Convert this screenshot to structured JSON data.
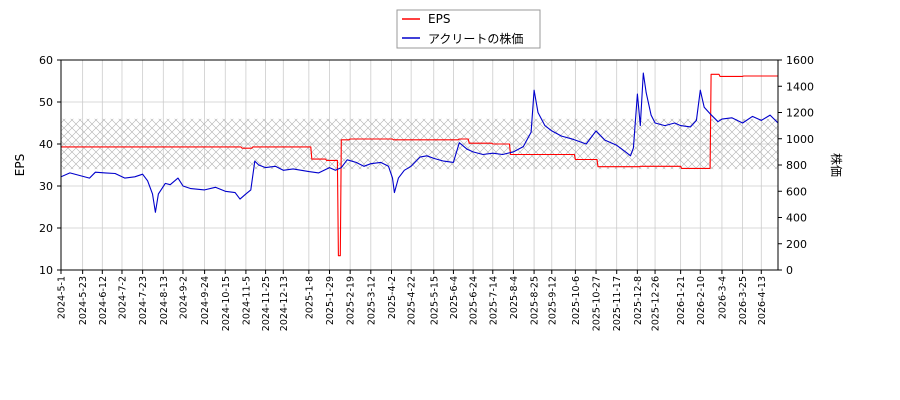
{
  "chart_data": {
    "type": "line",
    "xlabel": "",
    "ylabel_left": "EPS",
    "ylabel_right": "株価",
    "ylim_left": [
      10,
      60
    ],
    "yticks_left": [
      10,
      20,
      30,
      40,
      50,
      60
    ],
    "ylim_right": [
      0,
      1600
    ],
    "yticks_right": [
      0,
      200,
      400,
      600,
      800,
      1000,
      1200,
      1400,
      1600
    ],
    "grid": true,
    "legend_position": "top-center",
    "hatched_band_left": [
      34,
      46
    ],
    "x_tick_labels": [
      "2024-5-1",
      "2024-5-23",
      "2024-6-12",
      "2024-7-2",
      "2024-7-23",
      "2024-8-13",
      "2024-9-2",
      "2024-9-24",
      "2024-10-15",
      "2024-11-5",
      "2024-11-25",
      "2024-12-13",
      "2025-1-8",
      "2025-1-29",
      "2025-2-19",
      "2025-3-12",
      "2025-4-2",
      "2025-4-22",
      "2025-5-15",
      "2025-6-4",
      "2025-6-24",
      "2025-7-14",
      "2025-8-4",
      "2025-8-25",
      "2025-9-12",
      "2025-10-6",
      "2025-10-27",
      "2025-11-17",
      "2025-12-8",
      "2025-12-26",
      "2026-1-21",
      "2026-2-10",
      "2026-3-4",
      "2026-3-25",
      "2026-4-13"
    ],
    "x_range": [
      "2024-5-1",
      "2026-4-30"
    ],
    "series": [
      {
        "name": "EPS",
        "axis": "left",
        "color": "#ff0000",
        "points": [
          [
            "2024-5-1",
            39.3
          ],
          [
            "2024-10-31",
            39.3
          ],
          [
            "2024-11-1",
            39.0
          ],
          [
            "2024-11-11",
            39.0
          ],
          [
            "2024-11-12",
            39.3
          ],
          [
            "2025-1-10",
            39.3
          ],
          [
            "2025-1-11",
            36.4
          ],
          [
            "2025-1-25",
            36.4
          ],
          [
            "2025-1-26",
            36.1
          ],
          [
            "2025-2-6",
            36.1
          ],
          [
            "2025-2-7",
            13.4
          ],
          [
            "2025-2-9",
            13.4
          ],
          [
            "2025-2-10",
            41.0
          ],
          [
            "2025-2-18",
            41.0
          ],
          [
            "2025-2-19",
            41.2
          ],
          [
            "2025-4-3",
            41.2
          ],
          [
            "2025-4-4",
            41.0
          ],
          [
            "2025-6-9",
            41.0
          ],
          [
            "2025-6-10",
            41.2
          ],
          [
            "2025-6-19",
            41.2
          ],
          [
            "2025-6-20",
            40.2
          ],
          [
            "2025-7-13",
            40.2
          ],
          [
            "2025-7-14",
            40.0
          ],
          [
            "2025-7-31",
            40.0
          ],
          [
            "2025-8-1",
            37.5
          ],
          [
            "2025-10-5",
            37.5
          ],
          [
            "2025-10-6",
            36.3
          ],
          [
            "2025-10-28",
            36.3
          ],
          [
            "2025-10-29",
            34.6
          ],
          [
            "2025-12-10",
            34.6
          ],
          [
            "2025-12-11",
            34.7
          ],
          [
            "2025-12-31",
            34.7
          ],
          [
            "2026-1-1",
            34.7
          ],
          [
            "2026-1-21",
            34.7
          ],
          [
            "2026-1-22",
            34.2
          ],
          [
            "2026-2-20",
            34.2
          ],
          [
            "2026-2-21",
            56.6
          ],
          [
            "2026-3-1",
            56.6
          ],
          [
            "2026-3-2",
            56.1
          ],
          [
            "2026-3-25",
            56.1
          ],
          [
            "2026-3-26",
            56.2
          ],
          [
            "2026-4-30",
            56.2
          ]
        ]
      },
      {
        "name": "アクリートの株価",
        "axis": "right",
        "color": "#0000cc",
        "points": [
          [
            "2024-5-1",
            710
          ],
          [
            "2024-5-10",
            740
          ],
          [
            "2024-5-20",
            720
          ],
          [
            "2024-5-30",
            700
          ],
          [
            "2024-6-5",
            745
          ],
          [
            "2024-6-15",
            740
          ],
          [
            "2024-6-25",
            735
          ],
          [
            "2024-7-5",
            700
          ],
          [
            "2024-7-15",
            710
          ],
          [
            "2024-7-23",
            730
          ],
          [
            "2024-7-28",
            680
          ],
          [
            "2024-8-2",
            580
          ],
          [
            "2024-8-5",
            440
          ],
          [
            "2024-8-8",
            580
          ],
          [
            "2024-8-15",
            660
          ],
          [
            "2024-8-20",
            650
          ],
          [
            "2024-8-28",
            700
          ],
          [
            "2024-9-2",
            640
          ],
          [
            "2024-9-10",
            620
          ],
          [
            "2024-9-24",
            610
          ],
          [
            "2024-10-5",
            630
          ],
          [
            "2024-10-15",
            600
          ],
          [
            "2024-10-25",
            590
          ],
          [
            "2024-10-30",
            540
          ],
          [
            "2024-11-5",
            580
          ],
          [
            "2024-11-10",
            610
          ],
          [
            "2024-11-14",
            830
          ],
          [
            "2024-11-18",
            800
          ],
          [
            "2024-11-25",
            780
          ],
          [
            "2024-12-5",
            790
          ],
          [
            "2024-12-13",
            760
          ],
          [
            "2024-12-23",
            770
          ],
          [
            "2025-1-8",
            750
          ],
          [
            "2025-1-18",
            740
          ],
          [
            "2025-1-29",
            780
          ],
          [
            "2025-2-4",
            760
          ],
          [
            "2025-2-10",
            780
          ],
          [
            "2025-2-16",
            840
          ],
          [
            "2025-2-25",
            820
          ],
          [
            "2025-3-5",
            790
          ],
          [
            "2025-3-12",
            810
          ],
          [
            "2025-3-22",
            820
          ],
          [
            "2025-3-30",
            790
          ],
          [
            "2025-4-3",
            700
          ],
          [
            "2025-4-5",
            590
          ],
          [
            "2025-4-9",
            700
          ],
          [
            "2025-4-15",
            760
          ],
          [
            "2025-4-22",
            790
          ],
          [
            "2025-5-1",
            860
          ],
          [
            "2025-5-8",
            870
          ],
          [
            "2025-5-15",
            850
          ],
          [
            "2025-5-25",
            830
          ],
          [
            "2025-6-4",
            820
          ],
          [
            "2025-6-10",
            970
          ],
          [
            "2025-6-18",
            920
          ],
          [
            "2025-6-24",
            900
          ],
          [
            "2025-7-4",
            880
          ],
          [
            "2025-7-14",
            890
          ],
          [
            "2025-7-24",
            880
          ],
          [
            "2025-8-4",
            900
          ],
          [
            "2025-8-14",
            940
          ],
          [
            "2025-8-22",
            1050
          ],
          [
            "2025-8-25",
            1370
          ],
          [
            "2025-8-29",
            1200
          ],
          [
            "2025-9-5",
            1100
          ],
          [
            "2025-9-12",
            1060
          ],
          [
            "2025-9-22",
            1020
          ],
          [
            "2025-10-2",
            1000
          ],
          [
            "2025-10-6",
            990
          ],
          [
            "2025-10-17",
            960
          ],
          [
            "2025-10-27",
            1060
          ],
          [
            "2025-11-5",
            990
          ],
          [
            "2025-11-17",
            950
          ],
          [
            "2025-11-26",
            900
          ],
          [
            "2025-12-1",
            870
          ],
          [
            "2025-12-4",
            930
          ],
          [
            "2025-12-8",
            1340
          ],
          [
            "2025-12-11",
            1100
          ],
          [
            "2025-12-14",
            1500
          ],
          [
            "2025-12-17",
            1350
          ],
          [
            "2025-12-22",
            1180
          ],
          [
            "2025-12-26",
            1120
          ],
          [
            "2026-1-5",
            1100
          ],
          [
            "2026-1-15",
            1120
          ],
          [
            "2026-1-21",
            1100
          ],
          [
            "2026-1-31",
            1090
          ],
          [
            "2026-2-6",
            1140
          ],
          [
            "2026-2-10",
            1370
          ],
          [
            "2026-2-14",
            1240
          ],
          [
            "2026-2-20",
            1190
          ],
          [
            "2026-2-28",
            1130
          ],
          [
            "2026-3-4",
            1150
          ],
          [
            "2026-3-14",
            1160
          ],
          [
            "2026-3-25",
            1120
          ],
          [
            "2026-4-4",
            1170
          ],
          [
            "2026-4-13",
            1140
          ],
          [
            "2026-4-22",
            1180
          ],
          [
            "2026-4-30",
            1120
          ]
        ]
      }
    ]
  }
}
